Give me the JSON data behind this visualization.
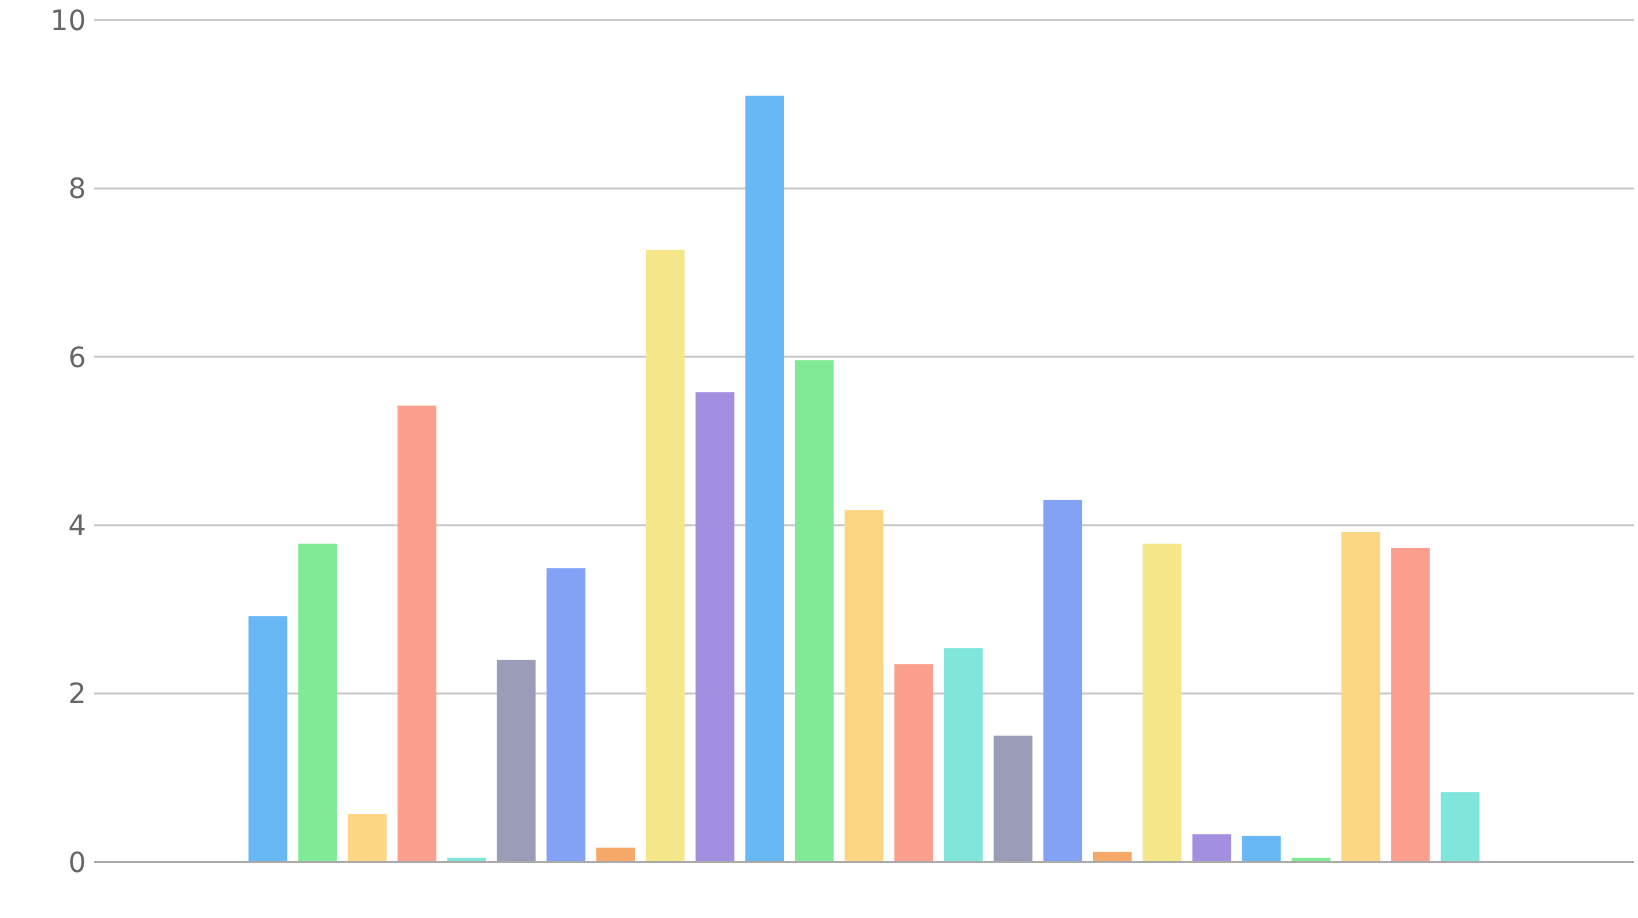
{
  "chart_data": {
    "type": "bar",
    "categories": [
      null,
      null,
      null,
      null,
      null,
      null,
      null,
      null,
      null,
      null,
      null,
      null,
      null,
      null,
      null,
      null,
      null,
      null,
      null,
      null,
      null,
      null,
      null,
      null,
      null,
      null,
      null,
      null,
      null,
      null,
      null
    ],
    "values": [
      null,
      null,
      null,
      2.92,
      3.78,
      0.57,
      5.42,
      0.05,
      2.4,
      3.49,
      0.17,
      7.27,
      5.58,
      9.1,
      5.96,
      4.18,
      2.35,
      2.54,
      1.5,
      4.3,
      0.12,
      3.78,
      0.33,
      0.31,
      0.05,
      3.92,
      3.73,
      0.83,
      null,
      null,
      null
    ],
    "colors": [
      null,
      null,
      null,
      "#67b8f5",
      "#80ea96",
      "#fdd683",
      "#fd9f8e",
      "#80e6dc",
      "#9a9cb8",
      "#82a3f5",
      "#f6a868",
      "#f5e68a",
      "#a38fdf",
      "#67b8f5",
      "#80ea96",
      "#fdd683",
      "#fd9f8e",
      "#80e6dc",
      "#9a9cb8",
      "#82a3f5",
      "#f6a868",
      "#f5e68a",
      "#a38fdf",
      "#67b8f5",
      "#80ea96",
      "#fdd683",
      "#fd9f8e",
      "#80e6dc",
      null,
      null,
      null
    ],
    "ylim": [
      0,
      10
    ],
    "yticks": [
      0,
      2,
      4,
      6,
      8,
      10
    ],
    "grid": "y"
  }
}
